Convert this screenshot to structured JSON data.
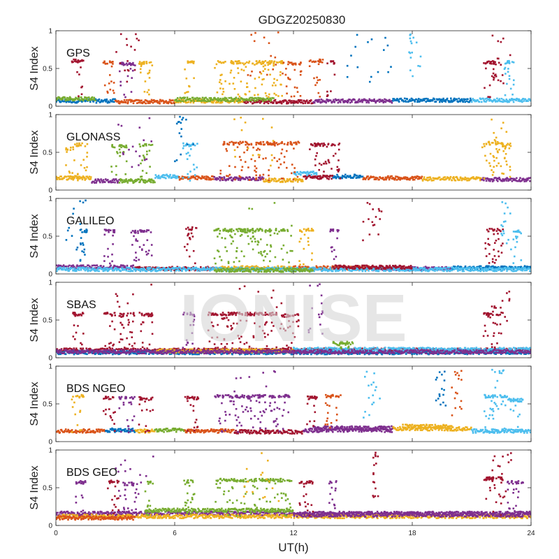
{
  "figure": {
    "title": "GDGZ20250830",
    "watermark": "IONISE"
  },
  "chart_data": {
    "type": "scatter",
    "title": "GDGZ20250830",
    "xlabel": "UT(h)",
    "ylabel": "S4 Index",
    "xlim": [
      0,
      24
    ],
    "ylim": [
      0,
      1
    ],
    "xticks": [
      0,
      6,
      12,
      18,
      24
    ],
    "yticks": [
      0,
      0.5,
      1
    ],
    "ytick_labels": [
      "0",
      "0.5",
      "1"
    ],
    "grid": false,
    "colors": [
      "#0072bd",
      "#d95319",
      "#edb120",
      "#7e2f8e",
      "#77ac30",
      "#4dbeee",
      "#a2142f"
    ],
    "panels": [
      {
        "name": "GPS",
        "base_segments": [
          [
            0.0,
            3.0,
            0.07,
            0
          ],
          [
            3.0,
            6.0,
            0.06,
            1
          ],
          [
            6.0,
            9.5,
            0.07,
            2
          ],
          [
            9.5,
            13.0,
            0.06,
            6
          ],
          [
            13.0,
            17.0,
            0.07,
            3
          ],
          [
            17.0,
            21.0,
            0.08,
            0
          ],
          [
            21.0,
            24.0,
            0.08,
            5
          ],
          [
            0.0,
            2.0,
            0.1,
            4
          ],
          [
            6.0,
            11.0,
            0.09,
            4
          ]
        ],
        "bands": [
          [
            0.8,
            1.4,
            0.6,
            6
          ],
          [
            2.4,
            3.0,
            0.58,
            1
          ],
          [
            3.2,
            4.0,
            0.56,
            3
          ],
          [
            4.2,
            4.9,
            0.57,
            2
          ],
          [
            6.5,
            7.0,
            0.58,
            2
          ],
          [
            8.0,
            11.5,
            0.58,
            2
          ],
          [
            11.5,
            12.4,
            0.57,
            1
          ],
          [
            21.6,
            22.4,
            0.58,
            6
          ],
          [
            22.6,
            23.2,
            0.58,
            5
          ],
          [
            12.8,
            13.5,
            0.6,
            1
          ],
          [
            13.7,
            14.1,
            0.58,
            6
          ]
        ],
        "spikes": [
          [
            9.5,
            11.5,
            1
          ],
          [
            14.5,
            17.0,
            0
          ],
          [
            17.8,
            18.5,
            5
          ],
          [
            22.0,
            23.0,
            6
          ],
          [
            3.0,
            4.5,
            6
          ]
        ]
      },
      {
        "name": "GLONASS",
        "base_segments": [
          [
            0.0,
            1.8,
            0.16,
            2
          ],
          [
            1.8,
            3.2,
            0.12,
            3
          ],
          [
            3.2,
            5.0,
            0.12,
            4
          ],
          [
            5.0,
            6.2,
            0.18,
            5
          ],
          [
            6.2,
            8.0,
            0.16,
            1
          ],
          [
            8.0,
            10.5,
            0.15,
            3
          ],
          [
            10.5,
            12.5,
            0.13,
            2
          ],
          [
            12.5,
            14.0,
            0.17,
            6
          ],
          [
            14.0,
            15.5,
            0.18,
            0
          ],
          [
            15.5,
            18.5,
            0.16,
            1
          ],
          [
            18.5,
            21.5,
            0.15,
            2
          ],
          [
            21.5,
            24.0,
            0.14,
            3
          ],
          [
            12.0,
            13.2,
            0.22,
            5
          ]
        ],
        "bands": [
          [
            0.9,
            1.6,
            0.6,
            2
          ],
          [
            2.8,
            3.6,
            0.58,
            4
          ],
          [
            4.2,
            4.9,
            0.6,
            4
          ],
          [
            6.4,
            7.2,
            0.6,
            5
          ],
          [
            8.3,
            12.3,
            0.62,
            1
          ],
          [
            12.8,
            14.4,
            0.6,
            6
          ],
          [
            21.5,
            22.6,
            0.62,
            2
          ],
          [
            22.6,
            23.0,
            0.6,
            2
          ],
          [
            0.5,
            0.9,
            0.55,
            2
          ]
        ],
        "spikes": [
          [
            9.0,
            11.0,
            2
          ],
          [
            3.0,
            5.0,
            3
          ],
          [
            22.0,
            23.0,
            2
          ],
          [
            6.0,
            7.0,
            0
          ]
        ]
      },
      {
        "name": "GALILEO",
        "base_segments": [
          [
            0.0,
            4.0,
            0.09,
            3
          ],
          [
            4.0,
            8.0,
            0.07,
            6
          ],
          [
            8.0,
            12.0,
            0.08,
            2
          ],
          [
            12.0,
            16.0,
            0.08,
            1
          ],
          [
            16.0,
            20.0,
            0.07,
            3
          ],
          [
            20.0,
            24.0,
            0.08,
            0
          ],
          [
            0.0,
            24.0,
            0.06,
            5
          ],
          [
            8.0,
            13.0,
            0.05,
            4
          ],
          [
            14.0,
            18.0,
            0.09,
            6
          ]
        ],
        "bands": [
          [
            1.2,
            1.6,
            0.57,
            0
          ],
          [
            2.4,
            3.0,
            0.57,
            3
          ],
          [
            3.8,
            4.9,
            0.56,
            3
          ],
          [
            6.5,
            7.1,
            0.6,
            6
          ],
          [
            8.0,
            11.8,
            0.58,
            4
          ],
          [
            12.3,
            13.0,
            0.58,
            2
          ],
          [
            13.8,
            14.3,
            0.57,
            3
          ],
          [
            21.6,
            22.6,
            0.58,
            6
          ],
          [
            23.1,
            23.6,
            0.57,
            5
          ]
        ],
        "spikes": [
          [
            9.5,
            12.0,
            4
          ],
          [
            15.5,
            16.5,
            6
          ],
          [
            22.5,
            23.0,
            5
          ],
          [
            0.5,
            1.5,
            0
          ]
        ]
      },
      {
        "name": "SBAS",
        "base_segments": [
          [
            0.0,
            24.0,
            0.1,
            6
          ],
          [
            0.0,
            24.0,
            0.07,
            0
          ],
          [
            5.0,
            12.0,
            0.09,
            2
          ],
          [
            12.0,
            24.0,
            0.11,
            5
          ],
          [
            0.0,
            24.0,
            0.08,
            3
          ]
        ],
        "bands": [
          [
            0.8,
            1.4,
            0.58,
            6
          ],
          [
            2.4,
            3.0,
            0.58,
            6
          ],
          [
            3.2,
            4.0,
            0.57,
            6
          ],
          [
            4.2,
            4.9,
            0.57,
            6
          ],
          [
            6.4,
            7.0,
            0.58,
            3
          ],
          [
            7.6,
            11.2,
            0.58,
            6
          ],
          [
            11.4,
            12.3,
            0.56,
            6
          ],
          [
            21.6,
            22.6,
            0.58,
            6
          ],
          [
            14.0,
            15.0,
            0.2,
            4
          ]
        ],
        "spikes": [
          [
            9.0,
            11.5,
            6
          ],
          [
            3.0,
            5.0,
            6
          ],
          [
            22.0,
            23.0,
            6
          ],
          [
            12.5,
            13.5,
            3
          ]
        ]
      },
      {
        "name": "BDS NGEO",
        "base_segments": [
          [
            0.0,
            2.5,
            0.14,
            1
          ],
          [
            2.5,
            4.0,
            0.15,
            0
          ],
          [
            4.0,
            5.0,
            0.14,
            2
          ],
          [
            5.0,
            6.5,
            0.15,
            4
          ],
          [
            6.5,
            9.0,
            0.14,
            1
          ],
          [
            9.0,
            12.5,
            0.13,
            6
          ],
          [
            12.5,
            17.0,
            0.15,
            3
          ],
          [
            17.0,
            21.0,
            0.17,
            2
          ],
          [
            21.0,
            24.0,
            0.14,
            5
          ],
          [
            13.0,
            17.0,
            0.18,
            3
          ],
          [
            17.5,
            20.0,
            0.2,
            2
          ]
        ],
        "bands": [
          [
            0.8,
            1.4,
            0.6,
            2
          ],
          [
            2.4,
            3.0,
            0.58,
            6
          ],
          [
            3.2,
            4.0,
            0.58,
            3
          ],
          [
            4.2,
            4.9,
            0.57,
            6
          ],
          [
            6.5,
            7.2,
            0.58,
            6
          ],
          [
            8.0,
            11.8,
            0.6,
            3
          ],
          [
            12.6,
            13.2,
            0.58,
            6
          ],
          [
            13.6,
            14.4,
            0.6,
            1
          ],
          [
            21.6,
            22.8,
            0.6,
            5
          ],
          [
            22.8,
            23.6,
            0.55,
            5
          ]
        ],
        "spikes": [
          [
            9.0,
            11.5,
            3
          ],
          [
            15.5,
            16.5,
            5
          ],
          [
            19.2,
            19.7,
            0
          ],
          [
            20.0,
            20.5,
            1
          ],
          [
            22.0,
            23.0,
            5
          ]
        ]
      },
      {
        "name": "BDS GEO",
        "base_segments": [
          [
            0.0,
            24.0,
            0.16,
            3
          ],
          [
            0.0,
            24.0,
            0.12,
            2
          ],
          [
            4.5,
            12.0,
            0.2,
            4
          ],
          [
            12.0,
            24.0,
            0.14,
            3
          ],
          [
            0.0,
            4.0,
            0.1,
            1
          ]
        ],
        "bands": [
          [
            1.0,
            1.6,
            0.57,
            3
          ],
          [
            2.6,
            3.2,
            0.58,
            6
          ],
          [
            3.4,
            4.1,
            0.55,
            3
          ],
          [
            4.5,
            4.9,
            0.57,
            4
          ],
          [
            6.4,
            7.0,
            0.58,
            4
          ],
          [
            8.0,
            11.9,
            0.6,
            4
          ],
          [
            12.3,
            13.0,
            0.57,
            6
          ],
          [
            13.8,
            14.2,
            0.58,
            3
          ],
          [
            21.6,
            22.6,
            0.62,
            6
          ],
          [
            22.8,
            23.6,
            0.57,
            3
          ]
        ],
        "spikes": [
          [
            9.0,
            11.5,
            2
          ],
          [
            3.0,
            5.0,
            3
          ],
          [
            22.0,
            23.0,
            6
          ],
          [
            16.0,
            16.3,
            6
          ]
        ]
      }
    ]
  }
}
